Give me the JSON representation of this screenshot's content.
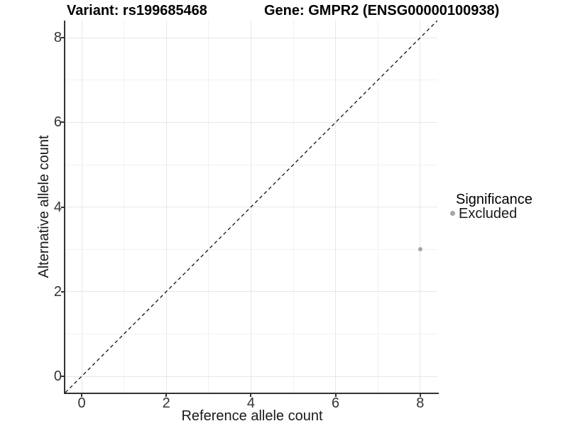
{
  "titles": {
    "variant": "Variant: rs199685468",
    "gene": "Gene: GMPR2 (ENSG00000100938)"
  },
  "axes": {
    "x": {
      "label": "Reference allele count",
      "tick_labels": [
        "0",
        "2",
        "4",
        "6",
        "8"
      ]
    },
    "y": {
      "label": "Alternative allele count",
      "tick_labels": [
        "0",
        "2",
        "4",
        "6",
        "8"
      ]
    }
  },
  "legend": {
    "title": "Significance",
    "items": [
      {
        "label": "Excluded",
        "color": "#a6a6a6"
      }
    ]
  },
  "colors": {
    "point": "#a6a6a6",
    "axis_line": "#333333",
    "grid_major": "#e7e7e7",
    "grid_minor": "#f1f1f1",
    "identity_line": "#000000",
    "background": "#ffffff"
  },
  "chart_data": {
    "type": "scatter",
    "title_left": "Variant: rs199685468",
    "title_right": "Gene: GMPR2 (ENSG00000100938)",
    "xlabel": "Reference allele count",
    "ylabel": "Alternative allele count",
    "xlim": [
      -0.4,
      8.4
    ],
    "ylim": [
      -0.4,
      8.4
    ],
    "x_ticks": [
      0,
      2,
      4,
      6,
      8
    ],
    "y_ticks": [
      0,
      2,
      4,
      6,
      8
    ],
    "grid": "on",
    "grid_minor_ticks": [
      1,
      3,
      5,
      7
    ],
    "legend_position": "right",
    "series": [
      {
        "name": "Excluded",
        "color": "#a6a6a6",
        "points": [
          {
            "x": 8,
            "y": 3
          }
        ]
      }
    ],
    "reference_line": {
      "type": "identity y=x",
      "style": "dashed",
      "color": "#000000"
    }
  }
}
